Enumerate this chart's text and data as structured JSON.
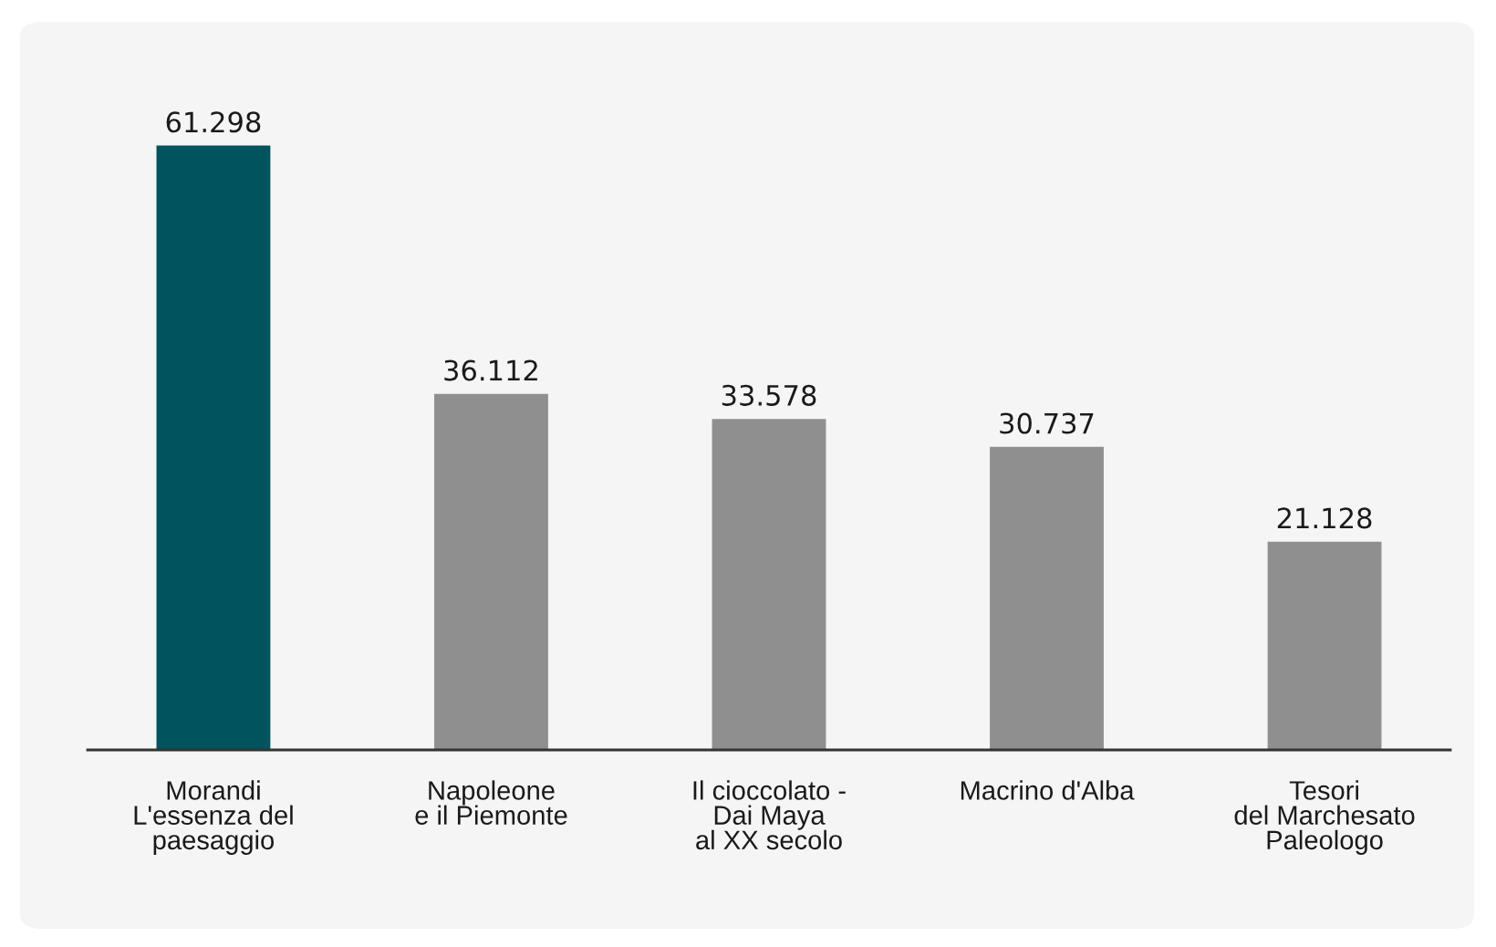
{
  "chart_data": {
    "type": "bar",
    "categories": [
      "Morandi\nL'essenza del\npaesaggio",
      "Napoleone\ne il Piemonte",
      "Il cioccolato -\nDai Maya\nal XX secolo",
      "Macrino d'Alba",
      "Tesori\ndel Marchesato\nPaleologo"
    ],
    "values": [
      61298,
      36112,
      33578,
      30737,
      21128
    ],
    "value_labels": [
      "61.298",
      "36.112",
      "33.578",
      "30.737",
      "21.128"
    ],
    "colors": [
      "#01535e",
      "#8f8f8f",
      "#8f8f8f",
      "#8f8f8f",
      "#8f8f8f"
    ]
  }
}
